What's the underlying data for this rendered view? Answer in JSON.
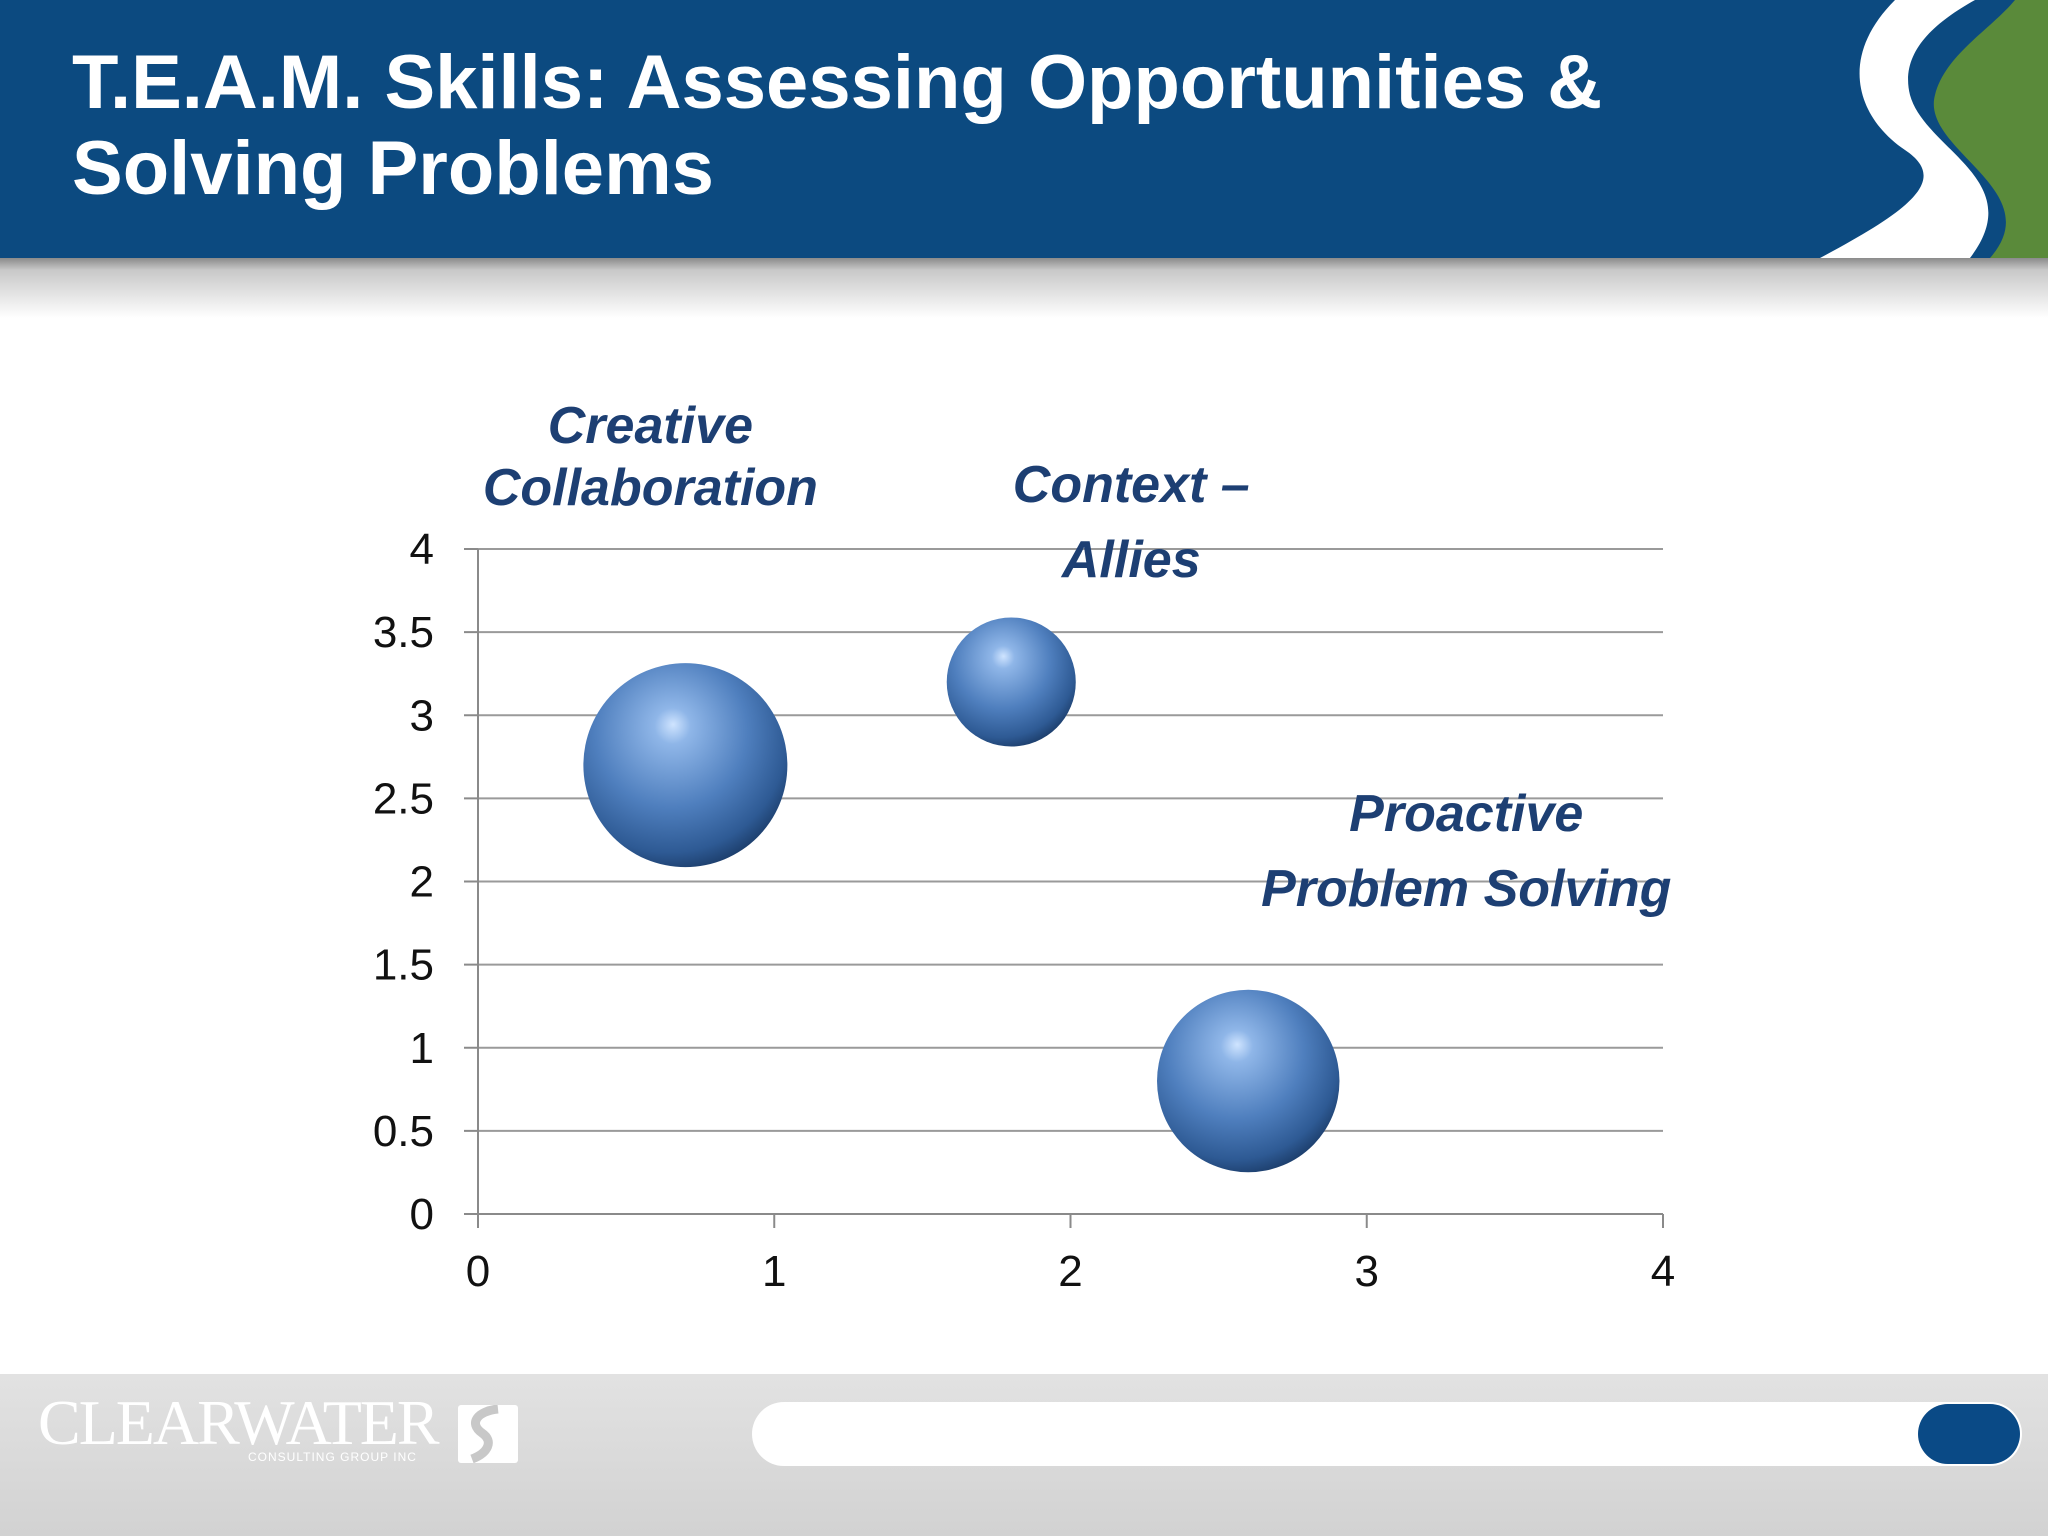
{
  "header": {
    "title": "T.E.A.M. Skills: Assessing Opportunities & Solving Problems"
  },
  "colors": {
    "header_bg": "#0c4a80",
    "swoosh_green": "#5a8a3a",
    "bubble_blue": "#4a7fc0",
    "label_navy": "#1d3f73",
    "progress_thumb": "#0a4a86"
  },
  "chart_data": {
    "type": "bubble",
    "xlim": [
      0,
      4
    ],
    "ylim": [
      0,
      4
    ],
    "x_ticks": [
      "0",
      "1",
      "2",
      "3",
      "4"
    ],
    "y_ticks": [
      "0",
      "0.5",
      "1",
      "1.5",
      "2",
      "2.5",
      "3",
      "3.5",
      "4"
    ],
    "grid": true,
    "points": [
      {
        "label_lines": [
          "Creative",
          "Collaboration"
        ],
        "x": 0.7,
        "y": 2.7,
        "size": 5.5
      },
      {
        "label_lines": [
          "Context –",
          "Allies"
        ],
        "x": 1.8,
        "y": 3.2,
        "size": 2.2
      },
      {
        "label_lines": [
          "Proactive",
          "Problem Solving"
        ],
        "x": 2.6,
        "y": 0.8,
        "size": 4.4
      }
    ]
  },
  "footer": {
    "logo_text": "CLEARWATER",
    "logo_subtext": "CONSULTING GROUP INC",
    "progress": 1.0
  }
}
